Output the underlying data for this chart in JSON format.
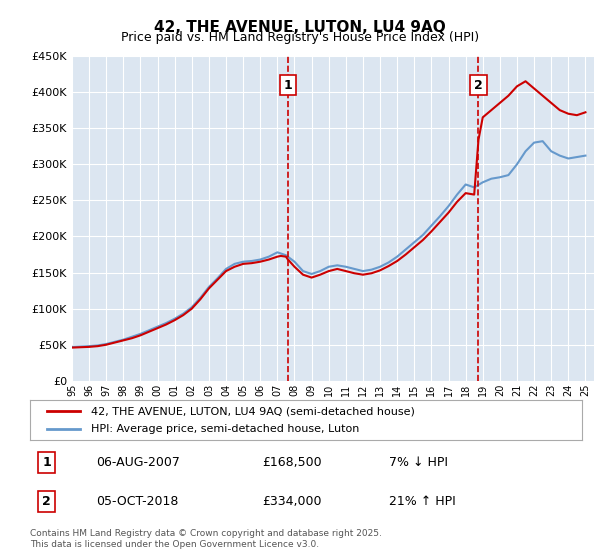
{
  "title": "42, THE AVENUE, LUTON, LU4 9AQ",
  "subtitle": "Price paid vs. HM Land Registry's House Price Index (HPI)",
  "xlabel": "",
  "ylabel": "",
  "ylim": [
    0,
    450000
  ],
  "yticks": [
    0,
    50000,
    100000,
    150000,
    200000,
    250000,
    300000,
    350000,
    400000,
    450000
  ],
  "ytick_labels": [
    "£0",
    "£50K",
    "£100K",
    "£150K",
    "£200K",
    "£250K",
    "£300K",
    "£350K",
    "£400K",
    "£450K"
  ],
  "xlim_start": 1995.0,
  "xlim_end": 2025.5,
  "background_color": "#dce6f1",
  "plot_bg_color": "#dce6f1",
  "fig_bg_color": "#ffffff",
  "grid_color": "#ffffff",
  "red_line_color": "#cc0000",
  "blue_line_color": "#6699cc",
  "vline_color": "#cc0000",
  "sale1_x": 2007.6,
  "sale1_price": 168500,
  "sale2_x": 2018.75,
  "sale2_price": 334000,
  "legend_label_red": "42, THE AVENUE, LUTON, LU4 9AQ (semi-detached house)",
  "legend_label_blue": "HPI: Average price, semi-detached house, Luton",
  "annot1_num": "1",
  "annot1_date": "06-AUG-2007",
  "annot1_price": "£168,500",
  "annot1_hpi": "7% ↓ HPI",
  "annot2_num": "2",
  "annot2_date": "05-OCT-2018",
  "annot2_price": "£334,000",
  "annot2_hpi": "21% ↑ HPI",
  "footer": "Contains HM Land Registry data © Crown copyright and database right 2025.\nThis data is licensed under the Open Government Licence v3.0.",
  "hpi_years": [
    1995,
    1995.5,
    1996,
    1996.5,
    1997,
    1997.5,
    1998,
    1998.5,
    1999,
    1999.5,
    2000,
    2000.5,
    2001,
    2001.5,
    2002,
    2002.5,
    2003,
    2003.5,
    2004,
    2004.5,
    2005,
    2005.5,
    2006,
    2006.5,
    2007,
    2007.5,
    2008,
    2008.5,
    2009,
    2009.5,
    2010,
    2010.5,
    2011,
    2011.5,
    2012,
    2012.5,
    2013,
    2013.5,
    2014,
    2014.5,
    2015,
    2015.5,
    2016,
    2016.5,
    2017,
    2017.5,
    2018,
    2018.5,
    2019,
    2019.5,
    2020,
    2020.5,
    2021,
    2021.5,
    2022,
    2022.5,
    2023,
    2023.5,
    2024,
    2024.5,
    2025
  ],
  "hpi_values": [
    47000,
    47500,
    48000,
    49000,
    51000,
    54000,
    57000,
    61000,
    65000,
    70000,
    75000,
    80000,
    86000,
    93000,
    102000,
    115000,
    130000,
    142000,
    155000,
    162000,
    165000,
    166000,
    168000,
    172000,
    178000,
    174000,
    165000,
    152000,
    148000,
    152000,
    158000,
    160000,
    158000,
    155000,
    152000,
    154000,
    158000,
    164000,
    172000,
    182000,
    192000,
    202000,
    215000,
    228000,
    242000,
    258000,
    272000,
    268000,
    275000,
    280000,
    282000,
    285000,
    300000,
    318000,
    330000,
    332000,
    318000,
    312000,
    308000,
    310000,
    312000
  ],
  "red_years": [
    1995,
    1995.5,
    1996,
    1996.5,
    1997,
    1997.5,
    1998,
    1998.5,
    1999,
    1999.5,
    2000,
    2000.5,
    2001,
    2001.5,
    2002,
    2002.5,
    2003,
    2003.5,
    2004,
    2004.5,
    2005,
    2005.5,
    2006,
    2006.5,
    2007,
    2007.2,
    2007.5,
    2007.6,
    2008,
    2008.5,
    2009,
    2009.5,
    2010,
    2010.5,
    2011,
    2011.5,
    2012,
    2012.5,
    2013,
    2013.5,
    2014,
    2014.5,
    2015,
    2015.5,
    2016,
    2016.5,
    2017,
    2017.5,
    2018,
    2018.5,
    2018.75,
    2019,
    2019.5,
    2020,
    2020.5,
    2021,
    2021.5,
    2022,
    2022.5,
    2023,
    2023.5,
    2024,
    2024.5,
    2025
  ],
  "red_values": [
    46000,
    46500,
    47000,
    48000,
    50000,
    53000,
    56000,
    59000,
    63000,
    68000,
    73000,
    78000,
    84000,
    91000,
    100000,
    113000,
    128000,
    140000,
    152000,
    158000,
    162000,
    163000,
    165000,
    168000,
    172000,
    173000,
    172000,
    168500,
    158000,
    147000,
    143000,
    147000,
    152000,
    155000,
    152000,
    149000,
    147000,
    149000,
    153000,
    159000,
    166000,
    175000,
    185000,
    195000,
    207000,
    220000,
    233000,
    248000,
    260000,
    258000,
    334000,
    365000,
    375000,
    385000,
    395000,
    408000,
    415000,
    405000,
    395000,
    385000,
    375000,
    370000,
    368000,
    372000
  ]
}
